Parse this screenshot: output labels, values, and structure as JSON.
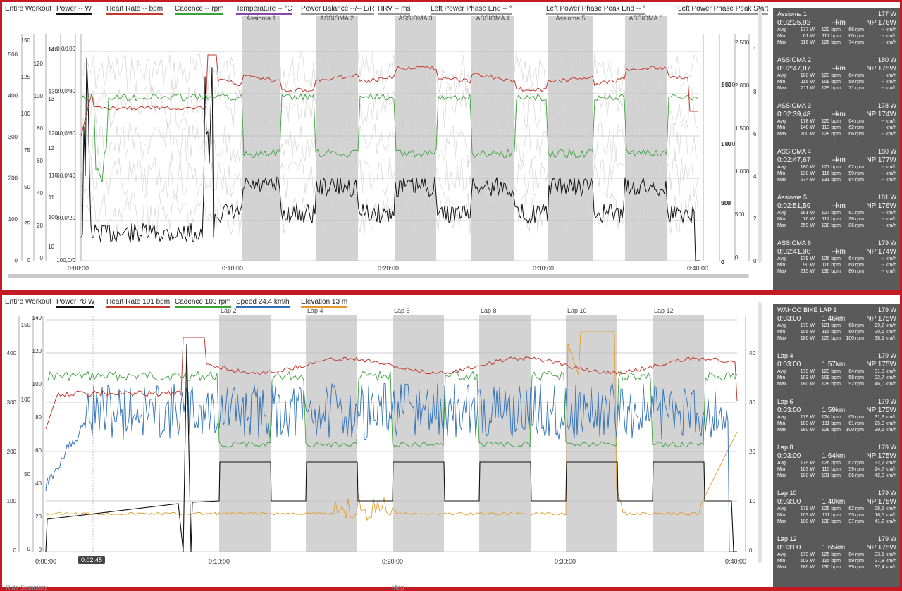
{
  "top": {
    "section_label": "Entire Workout",
    "legend": [
      {
        "label": "Power  -- W",
        "color": "#111111"
      },
      {
        "label": "Heart Rate  -- bpm",
        "color": "#c0392b"
      },
      {
        "label": "Cadence  -- rpm",
        "color": "#3aa03a"
      },
      {
        "label": "Temperature  -- °C",
        "color": "#8e44ad"
      },
      {
        "label": "Power Balance  --/-- L/R",
        "color": "#999999"
      },
      {
        "label": "HRV  -- ms",
        "color": "#999999"
      },
      {
        "label": "Left Power Phase End  -- °",
        "color": "#999999"
      },
      {
        "label": "Left Power Phase Peak End  -- °",
        "color": "#999999"
      },
      {
        "label": "Left Power Phase Peak Start",
        "color": "#999999"
      }
    ],
    "interval_labels": [
      "Assioma 1",
      "ASSIOMA 2",
      "ASSIOMA 3",
      "ASSIOMA 4",
      "Assioma 5",
      "ASSIOMA 6"
    ],
    "x_ticks": [
      "0:00:00",
      "0:10:00",
      "0:20:00",
      "0:30:00",
      "0:40:00"
    ],
    "axis_left": {
      "a": [
        "500",
        "400",
        "300",
        "200",
        "100",
        "0"
      ],
      "b": [
        "150",
        "125",
        "100",
        "75",
        "50",
        "25",
        "0"
      ],
      "c": [
        "120",
        "100",
        "80",
        "60",
        "40",
        "20",
        "0"
      ],
      "d": [
        "140",
        "130",
        "120",
        "110",
        "100"
      ],
      "e": [
        "14",
        "13",
        "12",
        "11",
        "10"
      ],
      "f": [
        "0,0/100",
        "20,0/80",
        "40,0/60",
        "60,0/40",
        "80,0/20",
        "100,0/0"
      ]
    },
    "axis_right": {
      "a": [
        "1 500",
        "1 000",
        "500",
        "0"
      ],
      "b": [
        "300",
        "200",
        "100",
        "0"
      ],
      "c": [
        "2 500",
        "2 000",
        "1 500",
        "1 000",
        "500",
        "0"
      ],
      "d": [
        "1",
        "8",
        "6",
        "4",
        "2",
        "0"
      ]
    },
    "laps": [
      {
        "name": "Assioma 1",
        "power": "177 W",
        "time": "0:02:25,92",
        "dist": "--km",
        "np": "NP 176W",
        "rows": [
          [
            "Avg",
            "177 W",
            "122 bpm",
            "66 rpm",
            "-- km/h"
          ],
          [
            "Min",
            "61 W",
            "117 bpm",
            "60 rpm",
            "-- km/h"
          ],
          [
            "Max",
            "316 W",
            "126 bpm",
            "74 rpm",
            "-- km/h"
          ]
        ]
      },
      {
        "name": "ASSIOMA 2",
        "power": "180 W",
        "time": "0:02:47,87",
        "dist": "--km",
        "np": "NP 175W",
        "rows": [
          [
            "Avg",
            "180 W",
            "123 bpm",
            "64 rpm",
            "-- km/h"
          ],
          [
            "Min",
            "115 W",
            "109 bpm",
            "59 rpm",
            "-- km/h"
          ],
          [
            "Max",
            "211 W",
            "129 bpm",
            "71 rpm",
            "-- km/h"
          ]
        ]
      },
      {
        "name": "ASSIOMA 3",
        "power": "178 W",
        "time": "0:02:39,48",
        "dist": "--km",
        "np": "NP 174W",
        "rows": [
          [
            "Avg",
            "178 W",
            "125 bpm",
            "64 rpm",
            "-- km/h"
          ],
          [
            "Min",
            "148 W",
            "113 bpm",
            "62 rpm",
            "-- km/h"
          ],
          [
            "Max",
            "200 W",
            "128 bpm",
            "66 rpm",
            "-- km/h"
          ]
        ]
      },
      {
        "name": "ASSIOMA 4",
        "power": "180 W",
        "time": "0:02:47,67",
        "dist": "--km",
        "np": "NP 177W",
        "rows": [
          [
            "Avg",
            "180 W",
            "127 bpm",
            "62 rpm",
            "-- km/h"
          ],
          [
            "Min",
            "130 W",
            "116 bpm",
            "59 rpm",
            "-- km/h"
          ],
          [
            "Max",
            "274 W",
            "131 bpm",
            "64 rpm",
            "-- km/h"
          ]
        ]
      },
      {
        "name": "Assioma 5",
        "power": "181 W",
        "time": "0:02:51,59",
        "dist": "--km",
        "np": "NP 176W",
        "rows": [
          [
            "Avg",
            "181 W",
            "127 bpm",
            "61 rpm",
            "-- km/h"
          ],
          [
            "Min",
            "76 W",
            "112 bpm",
            "38 rpm",
            "-- km/h"
          ],
          [
            "Max",
            "259 W",
            "130 bpm",
            "86 rpm",
            "-- km/h"
          ]
        ]
      },
      {
        "name": "ASSIOMA 6",
        "power": "179 W",
        "time": "0:02:41,98",
        "dist": "--km",
        "np": "NP 174W",
        "rows": [
          [
            "Avg",
            "179 W",
            "126 bpm",
            "64 rpm",
            "-- km/h"
          ],
          [
            "Min",
            "90 W",
            "116 bpm",
            "60 rpm",
            "-- km/h"
          ],
          [
            "Max",
            "215 W",
            "130 bpm",
            "80 rpm",
            "-- km/h"
          ]
        ]
      }
    ]
  },
  "bottom": {
    "section_label": "Entire Workout",
    "legend": [
      {
        "label": "Power  78 W",
        "color": "#111111"
      },
      {
        "label": "Heart Rate  101 bpm",
        "color": "#c0392b"
      },
      {
        "label": "Cadence  103 rpm",
        "color": "#3aa03a"
      },
      {
        "label": "Speed  24,4 km/h",
        "color": "#2e6fb5"
      },
      {
        "label": "Elevation  13 m",
        "color": "#e39a2d"
      }
    ],
    "interval_labels": [
      "Lap 2",
      "Lap 4",
      "Lap 6",
      "Lap 8",
      "Lap 10",
      "Lap 12"
    ],
    "x_ticks": [
      "0:00:00",
      "0:10:00",
      "0:20:00",
      "0:30:00",
      "0:40:00"
    ],
    "time_cursor": "0:02:45",
    "axis_left": {
      "a": [
        "400",
        "300",
        "200",
        "100",
        "0"
      ],
      "b": [
        "150",
        "100",
        "50",
        "0"
      ],
      "c": [
        "140",
        "120",
        "100",
        "80",
        "60",
        "40",
        "20",
        "0"
      ]
    },
    "axis_right": [
      "40",
      "30",
      "20",
      "10",
      "0"
    ],
    "laps": [
      {
        "name": "WAHOO BIKE LAP 1",
        "power": "179 W",
        "time": "0:03:00",
        "dist": "1,46km",
        "np": "NP 175W",
        "rows": [
          [
            "Avg",
            "179 W",
            "121 bpm",
            "68 rpm",
            "29,2 km/h"
          ],
          [
            "Min",
            "105 W",
            "115 bpm",
            "60 rpm",
            "20,1 km/h"
          ],
          [
            "Max",
            "180 W",
            "125 bpm",
            "100 rpm",
            "38,1 km/h"
          ]
        ]
      },
      {
        "name": "Lap 4",
        "power": "179 W",
        "time": "0:03:00",
        "dist": "1,57km",
        "np": "NP 175W",
        "rows": [
          [
            "Avg",
            "179 W",
            "123 bpm",
            "64 rpm",
            "31,3 km/h"
          ],
          [
            "Min",
            "103 W",
            "109 bpm",
            "58 rpm",
            "22,7 km/h"
          ],
          [
            "Max",
            "180 W",
            "128 bpm",
            "92 rpm",
            "46,0 km/h"
          ]
        ]
      },
      {
        "name": "Lap 6",
        "power": "179 W",
        "time": "0:03:00",
        "dist": "1,59km",
        "np": "NP 175W",
        "rows": [
          [
            "Avg",
            "179 W",
            "124 bpm",
            "65 rpm",
            "31,9 km/h"
          ],
          [
            "Min",
            "103 W",
            "111 bpm",
            "61 rpm",
            "25,0 km/h"
          ],
          [
            "Max",
            "180 W",
            "128 bpm",
            "100 rpm",
            "39,5 km/h"
          ]
        ]
      },
      {
        "name": "Lap 8",
        "power": "179 W",
        "time": "0:03:00",
        "dist": "1,64km",
        "np": "NP 175W",
        "rows": [
          [
            "Avg",
            "179 W",
            "126 bpm",
            "62 rpm",
            "32,7 km/h"
          ],
          [
            "Min",
            "103 W",
            "115 bpm",
            "59 rpm",
            "24,7 km/h"
          ],
          [
            "Max",
            "180 W",
            "131 bpm",
            "86 rpm",
            "42,3 km/h"
          ]
        ]
      },
      {
        "name": "Lap 10",
        "power": "179 W",
        "time": "0:03:00",
        "dist": "1,40km",
        "np": "NP 175W",
        "rows": [
          [
            "Avg",
            "179 W",
            "125 bpm",
            "62 rpm",
            "28,1 km/h"
          ],
          [
            "Min",
            "103 W",
            "111 bpm",
            "55 rpm",
            "16,5 km/h"
          ],
          [
            "Max",
            "180 W",
            "130 bpm",
            "97 rpm",
            "41,2 km/h"
          ]
        ]
      },
      {
        "name": "Lap 12",
        "power": "179 W",
        "time": "0:03:00",
        "dist": "1,65km",
        "np": "NP 175W",
        "rows": [
          [
            "Avg",
            "179 W",
            "125 bpm",
            "64 rpm",
            "33,1 km/h"
          ],
          [
            "Min",
            "103 W",
            "115 bpm",
            "59 rpm",
            "27,8 km/h"
          ],
          [
            "Max",
            "180 W",
            "130 bpm",
            "99 rpm",
            "37,4 km/h"
          ]
        ]
      }
    ]
  },
  "footer": {
    "left": "Ride Summary",
    "right": "Map"
  }
}
